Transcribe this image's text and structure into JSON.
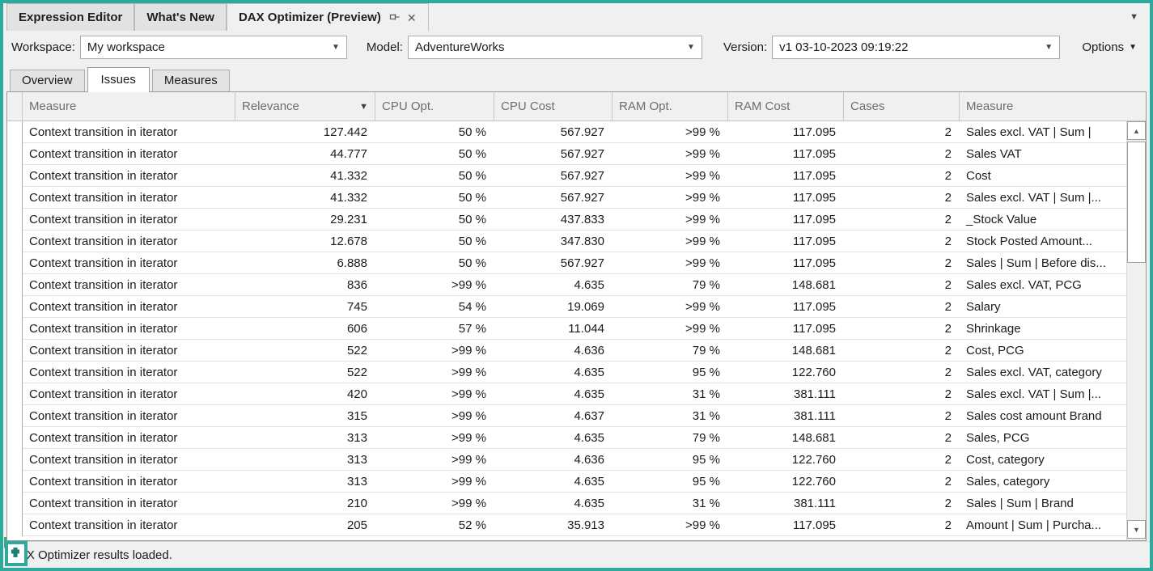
{
  "window": {
    "accent_color": "#2ea99c",
    "background": "#f0f0f0"
  },
  "doc_tabs": [
    {
      "label": "Expression Editor",
      "active": false
    },
    {
      "label": "What's New",
      "active": false
    },
    {
      "label": "DAX Optimizer (Preview)",
      "active": true
    }
  ],
  "doc_tab_icons": {
    "pin": "pin-icon",
    "close": "✕",
    "overflow_caret": "▼"
  },
  "toolbar": {
    "workspace_label": "Workspace:",
    "workspace_value": "My workspace",
    "model_label": "Model:",
    "model_value": "AdventureWorks",
    "version_label": "Version:",
    "version_value": "v1 03-10-2023 09:19:22",
    "options_label": "Options",
    "caret": "▼"
  },
  "view_tabs": [
    {
      "label": "Overview",
      "active": false
    },
    {
      "label": "Issues",
      "active": true
    },
    {
      "label": "Measures",
      "active": false
    }
  ],
  "grid": {
    "columns": [
      "Measure",
      "Relevance",
      "CPU Opt.",
      "CPU Cost",
      "RAM Opt.",
      "RAM Cost",
      "Cases",
      "Measure"
    ],
    "sorted_column": "Relevance",
    "sort_indicator": "▼",
    "rows": [
      [
        "Context transition in iterator",
        "127.442",
        "50 %",
        "567.927",
        ">99 %",
        "117.095",
        "2",
        "Sales excl. VAT | Sum |"
      ],
      [
        "Context transition in iterator",
        "44.777",
        "50 %",
        "567.927",
        ">99 %",
        "117.095",
        "2",
        "Sales VAT"
      ],
      [
        "Context transition in iterator",
        "41.332",
        "50 %",
        "567.927",
        ">99 %",
        "117.095",
        "2",
        "Cost"
      ],
      [
        "Context transition in iterator",
        "41.332",
        "50 %",
        "567.927",
        ">99 %",
        "117.095",
        "2",
        "Sales excl. VAT | Sum |..."
      ],
      [
        "Context transition in iterator",
        "29.231",
        "50 %",
        "437.833",
        ">99 %",
        "117.095",
        "2",
        "_Stock Value"
      ],
      [
        "Context transition in iterator",
        "12.678",
        "50 %",
        "347.830",
        ">99 %",
        "117.095",
        "2",
        "Stock Posted Amount..."
      ],
      [
        "Context transition in iterator",
        "6.888",
        "50 %",
        "567.927",
        ">99 %",
        "117.095",
        "2",
        "Sales | Sum | Before dis..."
      ],
      [
        "Context transition in iterator",
        "836",
        ">99 %",
        "4.635",
        "79 %",
        "148.681",
        "2",
        "Sales excl. VAT, PCG"
      ],
      [
        "Context transition in iterator",
        "745",
        "54 %",
        "19.069",
        ">99 %",
        "117.095",
        "2",
        "Salary"
      ],
      [
        "Context transition in iterator",
        "606",
        "57 %",
        "11.044",
        ">99 %",
        "117.095",
        "2",
        "Shrinkage"
      ],
      [
        "Context transition in iterator",
        "522",
        ">99 %",
        "4.636",
        "79 %",
        "148.681",
        "2",
        "Cost, PCG"
      ],
      [
        "Context transition in iterator",
        "522",
        ">99 %",
        "4.635",
        "95 %",
        "122.760",
        "2",
        "Sales excl. VAT, category"
      ],
      [
        "Context transition in iterator",
        "420",
        ">99 %",
        "4.635",
        "31 %",
        "381.111",
        "2",
        "Sales excl. VAT | Sum |..."
      ],
      [
        "Context transition in iterator",
        "315",
        ">99 %",
        "4.637",
        "31 %",
        "381.111",
        "2",
        "Sales cost amount Brand"
      ],
      [
        "Context transition in iterator",
        "313",
        ">99 %",
        "4.635",
        "79 %",
        "148.681",
        "2",
        "Sales, PCG"
      ],
      [
        "Context transition in iterator",
        "313",
        ">99 %",
        "4.636",
        "95 %",
        "122.760",
        "2",
        "Cost, category"
      ],
      [
        "Context transition in iterator",
        "313",
        ">99 %",
        "4.635",
        "95 %",
        "122.760",
        "2",
        "Sales, category"
      ],
      [
        "Context transition in iterator",
        "210",
        ">99 %",
        "4.635",
        "31 %",
        "381.111",
        "2",
        "Sales | Sum | Brand"
      ],
      [
        "Context transition in iterator",
        "205",
        "52 %",
        "35.913",
        ">99 %",
        "117.095",
        "2",
        "Amount | Sum | Purcha..."
      ]
    ],
    "scrollbar": {
      "up_arrow": "▲",
      "down_arrow": "▼"
    }
  },
  "status_bar": {
    "text": "DAX Optimizer results loaded."
  }
}
